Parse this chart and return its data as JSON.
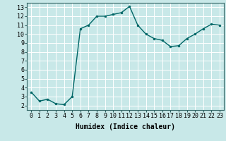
{
  "x": [
    0,
    1,
    2,
    3,
    4,
    5,
    6,
    7,
    8,
    9,
    10,
    11,
    12,
    13,
    14,
    15,
    16,
    17,
    18,
    19,
    20,
    21,
    22,
    23
  ],
  "y": [
    3.5,
    2.5,
    2.7,
    2.2,
    2.1,
    3.0,
    10.6,
    11.0,
    12.0,
    12.0,
    12.2,
    12.4,
    13.1,
    11.0,
    10.0,
    9.5,
    9.3,
    8.6,
    8.7,
    9.5,
    10.0,
    10.6,
    11.1,
    11.0
  ],
  "line_color": "#006666",
  "marker": "o",
  "markersize": 2.0,
  "linewidth": 1.0,
  "xlabel": "Humidex (Indice chaleur)",
  "xlabel_fontsize": 7,
  "xlim": [
    -0.5,
    23.5
  ],
  "ylim": [
    1.5,
    13.5
  ],
  "yticks": [
    2,
    3,
    4,
    5,
    6,
    7,
    8,
    9,
    10,
    11,
    12,
    13
  ],
  "xticks": [
    0,
    1,
    2,
    3,
    4,
    5,
    6,
    7,
    8,
    9,
    10,
    11,
    12,
    13,
    14,
    15,
    16,
    17,
    18,
    19,
    20,
    21,
    22,
    23
  ],
  "xtick_labels": [
    "0",
    "1",
    "2",
    "3",
    "4",
    "5",
    "6",
    "7",
    "8",
    "9",
    "10",
    "11",
    "12",
    "13",
    "14",
    "15",
    "16",
    "17",
    "18",
    "19",
    "20",
    "21",
    "22",
    "23"
  ],
  "ytick_labels": [
    "2",
    "3",
    "4",
    "5",
    "6",
    "7",
    "8",
    "9",
    "10",
    "11",
    "12",
    "13"
  ],
  "bg_color": "#c8e8e8",
  "grid_color": "#ffffff",
  "tick_fontsize": 6,
  "spine_color": "#336666"
}
